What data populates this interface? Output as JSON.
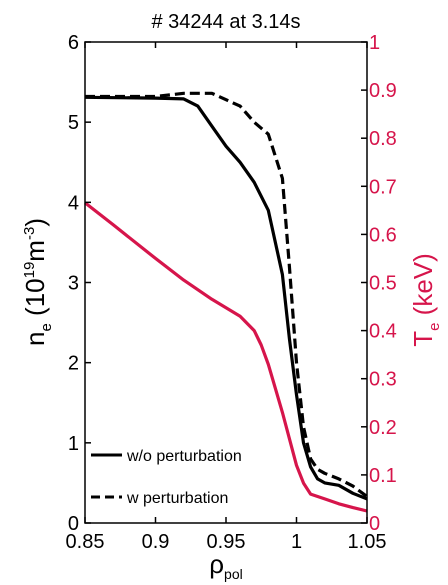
{
  "chart_data": {
    "type": "line",
    "title": "# 34244 at 3.14s",
    "xlabel": {
      "base": "ρ",
      "sub": "pol"
    },
    "ylabel_left": {
      "base": "n",
      "sub": "e",
      "open": " (10",
      "sup1": "19",
      "mid": "m",
      "sup2": "-3",
      "close": ")"
    },
    "ylabel_right": {
      "base": "T",
      "sub": "e",
      "rest": " (keV)"
    },
    "xlim": [
      0.85,
      1.05
    ],
    "ylim_left": [
      0,
      6
    ],
    "ylim_right": [
      0,
      1
    ],
    "xticks": [
      "0.85",
      "0.9",
      "0.95",
      "1",
      "1.05"
    ],
    "yticks_left": [
      "0",
      "1",
      "2",
      "3",
      "4",
      "5",
      "6"
    ],
    "yticks_right": [
      "0",
      "0.1",
      "0.2",
      "0.3",
      "0.4",
      "0.5",
      "0.6",
      "0.7",
      "0.8",
      "0.9",
      "1"
    ],
    "grid": false,
    "legend_position": "bottom-left",
    "series": [
      {
        "name": "w/o perturbation",
        "axis": "left",
        "color": "#000000",
        "style": "solid",
        "points": [
          [
            0.85,
            5.31
          ],
          [
            0.9,
            5.3
          ],
          [
            0.92,
            5.29
          ],
          [
            0.93,
            5.2
          ],
          [
            0.94,
            4.95
          ],
          [
            0.95,
            4.7
          ],
          [
            0.96,
            4.5
          ],
          [
            0.97,
            4.25
          ],
          [
            0.98,
            3.9
          ],
          [
            0.99,
            3.1
          ],
          [
            0.995,
            2.3
          ],
          [
            1.0,
            1.6
          ],
          [
            1.005,
            1.0
          ],
          [
            1.01,
            0.7
          ],
          [
            1.015,
            0.55
          ],
          [
            1.02,
            0.5
          ],
          [
            1.03,
            0.47
          ],
          [
            1.04,
            0.37
          ],
          [
            1.05,
            0.3
          ]
        ]
      },
      {
        "name": "w perturbation",
        "axis": "left",
        "color": "#000000",
        "style": "dashed",
        "points": [
          [
            0.85,
            5.32
          ],
          [
            0.9,
            5.32
          ],
          [
            0.92,
            5.36
          ],
          [
            0.94,
            5.36
          ],
          [
            0.96,
            5.2
          ],
          [
            0.97,
            5.0
          ],
          [
            0.98,
            4.85
          ],
          [
            0.99,
            4.3
          ],
          [
            0.995,
            3.2
          ],
          [
            1.0,
            2.0
          ],
          [
            1.005,
            1.2
          ],
          [
            1.01,
            0.8
          ],
          [
            1.015,
            0.67
          ],
          [
            1.02,
            0.62
          ],
          [
            1.03,
            0.55
          ],
          [
            1.04,
            0.46
          ],
          [
            1.05,
            0.33
          ]
        ]
      },
      {
        "name": "",
        "axis": "right",
        "color": "#d6154b",
        "style": "solid",
        "points": [
          [
            0.85,
            0.666
          ],
          [
            0.87,
            0.62
          ],
          [
            0.9,
            0.55
          ],
          [
            0.92,
            0.505
          ],
          [
            0.94,
            0.465
          ],
          [
            0.96,
            0.43
          ],
          [
            0.97,
            0.4
          ],
          [
            0.975,
            0.37
          ],
          [
            0.98,
            0.33
          ],
          [
            0.99,
            0.23
          ],
          [
            1.0,
            0.12
          ],
          [
            1.005,
            0.083
          ],
          [
            1.01,
            0.06
          ],
          [
            1.02,
            0.05
          ],
          [
            1.03,
            0.04
          ],
          [
            1.04,
            0.032
          ],
          [
            1.05,
            0.025
          ]
        ]
      }
    ],
    "colors": {
      "black": "#000000",
      "accent": "#d6154b"
    }
  }
}
